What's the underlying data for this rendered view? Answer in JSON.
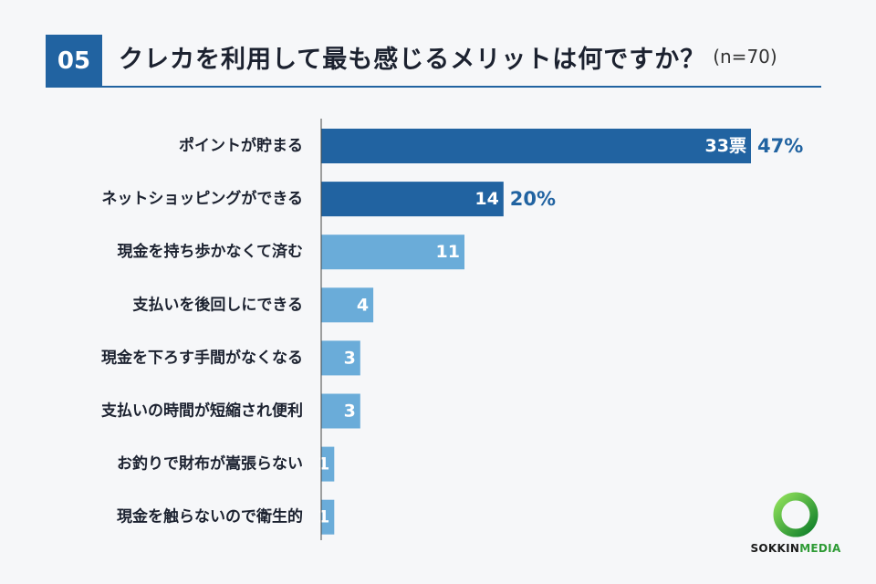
{
  "header": {
    "number": "05",
    "title": "クレカを利用して最も感じるメリットは何ですか？",
    "sample": "(n=70)"
  },
  "chart_data": {
    "type": "bar",
    "orientation": "horizontal",
    "categories": [
      "ポイントが貯まる",
      "ネットショッピングができる",
      "現金を持ち歩かなくて済む",
      "支払いを後回しにできる",
      "現金を下ろす手間がなくなる",
      "支払いの時間が短縮され便利",
      "お釣りで財布が嵩張らない",
      "現金を触らないので衛生的"
    ],
    "values": [
      33,
      14,
      11,
      4,
      3,
      3,
      1,
      1
    ],
    "value_labels": [
      "33票",
      "14",
      "11",
      "4",
      "3",
      "3",
      "1",
      "1"
    ],
    "percent_labels": [
      "47%",
      "20%",
      "",
      "",
      "",
      "",
      "",
      ""
    ],
    "highlight_count": 2,
    "colors": {
      "highlight": "#2163a1",
      "normal": "#6aacd9",
      "percent_text": "#2163a1",
      "label_text": "#1c2230"
    },
    "xlim": [
      0,
      33
    ]
  },
  "logo": {
    "text_main": "SOKKIN",
    "text_accent": "MEDIA",
    "ring_color": "#27a836"
  }
}
